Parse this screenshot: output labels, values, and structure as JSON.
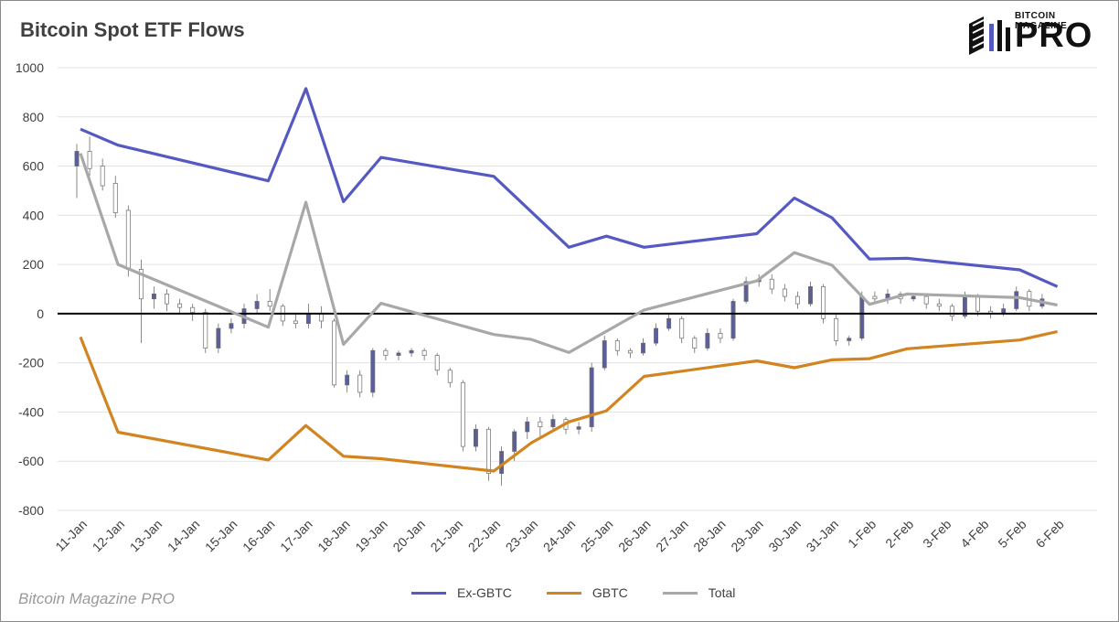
{
  "title": "Bitcoin Spot ETF Flows",
  "watermark": "Bitcoin Magazine PRO",
  "logo": {
    "small": "BITCOIN MAGAZINE",
    "big": "PRO",
    "icon": "candlestick-logo-icon"
  },
  "colors": {
    "ex_gbtc": "#5559c2",
    "gbtc": "#d1841f",
    "total": "#a8a8a8",
    "zero_line": "#000000",
    "grid": "#e3e3e3",
    "candle_up": "#5a5f9c",
    "candle_down": "#ffffff"
  },
  "chart_data": {
    "type": "line",
    "categories": [
      "11-Jan",
      "12-Jan",
      "13-Jan",
      "14-Jan",
      "15-Jan",
      "16-Jan",
      "17-Jan",
      "18-Jan",
      "19-Jan",
      "20-Jan",
      "21-Jan",
      "22-Jan",
      "23-Jan",
      "24-Jan",
      "25-Jan",
      "26-Jan",
      "27-Jan",
      "28-Jan",
      "29-Jan",
      "30-Jan",
      "31-Jan",
      "1-Feb",
      "2-Feb",
      "3-Feb",
      "4-Feb",
      "5-Feb",
      "6-Feb"
    ],
    "ylim": [
      -800,
      1000
    ],
    "yticks": [
      1000,
      800,
      600,
      400,
      200,
      0,
      -200,
      -400,
      -600,
      -800
    ],
    "grid": true,
    "legend_position": "bottom",
    "series": [
      {
        "name": "Ex-GBTC",
        "x": [
          "11-Jan",
          "12-Jan",
          "16-Jan",
          "17-Jan",
          "18-Jan",
          "19-Jan",
          "22-Jan",
          "24-Jan",
          "25-Jan",
          "26-Jan",
          "29-Jan",
          "30-Jan",
          "31-Jan",
          "1-Feb",
          "2-Feb",
          "5-Feb",
          "6-Feb"
        ],
        "values": [
          750,
          685,
          540,
          915,
          455,
          635,
          558,
          270,
          315,
          270,
          325,
          470,
          390,
          222,
          225,
          178,
          110
        ]
      },
      {
        "name": "GBTC",
        "x": [
          "11-Jan",
          "12-Jan",
          "16-Jan",
          "17-Jan",
          "18-Jan",
          "19-Jan",
          "22-Jan",
          "23-Jan",
          "24-Jan",
          "25-Jan",
          "26-Jan",
          "29-Jan",
          "30-Jan",
          "31-Jan",
          "1-Feb",
          "2-Feb",
          "5-Feb",
          "6-Feb"
        ],
        "values": [
          -95,
          -482,
          -595,
          -455,
          -580,
          -590,
          -640,
          -525,
          -440,
          -395,
          -255,
          -192,
          -220,
          -188,
          -183,
          -143,
          -107,
          -73
        ]
      },
      {
        "name": "Total",
        "x": [
          "11-Jan",
          "12-Jan",
          "16-Jan",
          "17-Jan",
          "18-Jan",
          "19-Jan",
          "22-Jan",
          "23-Jan",
          "24-Jan",
          "26-Jan",
          "29-Jan",
          "30-Jan",
          "31-Jan",
          "1-Feb",
          "2-Feb",
          "5-Feb",
          "6-Feb"
        ],
        "values": [
          652,
          200,
          -55,
          453,
          -125,
          42,
          -85,
          -105,
          -158,
          15,
          133,
          248,
          197,
          38,
          80,
          65,
          35
        ]
      }
    ],
    "price_candles": {
      "note_type": "candlestick",
      "values": [
        [
          -5,
          600,
          660,
          470,
          690
        ],
        [
          -4,
          660,
          590,
          560,
          720
        ],
        [
          -3,
          600,
          520,
          500,
          630
        ],
        [
          -2,
          530,
          410,
          390,
          560
        ],
        [
          -1,
          420,
          180,
          150,
          440
        ],
        [
          0,
          180,
          60,
          -120,
          220
        ],
        [
          1,
          60,
          80,
          20,
          110
        ],
        [
          2,
          80,
          40,
          10,
          100
        ],
        [
          3,
          40,
          25,
          0,
          60
        ],
        [
          4,
          25,
          5,
          -30,
          40
        ],
        [
          5,
          5,
          -140,
          -160,
          20
        ],
        [
          6,
          -140,
          -60,
          -160,
          -40
        ],
        [
          7,
          -60,
          -40,
          -80,
          -20
        ],
        [
          8,
          -40,
          20,
          -60,
          40
        ],
        [
          9,
          20,
          50,
          0,
          80
        ],
        [
          10,
          50,
          30,
          10,
          100
        ],
        [
          11,
          30,
          -30,
          -50,
          40
        ],
        [
          12,
          -30,
          -40,
          -60,
          0
        ],
        [
          13,
          -40,
          0,
          -60,
          40
        ],
        [
          14,
          0,
          -30,
          -60,
          30
        ],
        [
          15,
          -30,
          -290,
          -300,
          -20
        ],
        [
          16,
          -290,
          -250,
          -320,
          -230
        ],
        [
          17,
          -250,
          -320,
          -340,
          -230
        ],
        [
          18,
          -320,
          -150,
          -340,
          -140
        ],
        [
          19,
          -150,
          -170,
          -190,
          -140
        ],
        [
          20,
          -170,
          -160,
          -190,
          -150
        ],
        [
          21,
          -160,
          -150,
          -175,
          -140
        ],
        [
          22,
          -150,
          -170,
          -190,
          -140
        ],
        [
          23,
          -170,
          -230,
          -250,
          -160
        ],
        [
          24,
          -230,
          -280,
          -300,
          -220
        ],
        [
          25,
          -280,
          -540,
          -560,
          -270
        ],
        [
          26,
          -540,
          -470,
          -560,
          -450
        ],
        [
          27,
          -470,
          -650,
          -680,
          -460
        ],
        [
          28,
          -650,
          -560,
          -700,
          -540
        ],
        [
          29,
          -560,
          -480,
          -600,
          -470
        ],
        [
          30,
          -480,
          -440,
          -510,
          -420
        ],
        [
          31,
          -440,
          -460,
          -500,
          -420
        ],
        [
          32,
          -460,
          -430,
          -470,
          -410
        ],
        [
          33,
          -430,
          -470,
          -490,
          -420
        ],
        [
          34,
          -470,
          -460,
          -490,
          -440
        ],
        [
          35,
          -460,
          -220,
          -480,
          -200
        ],
        [
          36,
          -220,
          -110,
          -230,
          -90
        ],
        [
          37,
          -110,
          -150,
          -170,
          -100
        ],
        [
          38,
          -150,
          -160,
          -180,
          -140
        ],
        [
          39,
          -160,
          -120,
          -170,
          -100
        ],
        [
          40,
          -120,
          -60,
          -130,
          -40
        ],
        [
          41,
          -60,
          -20,
          -70,
          0
        ],
        [
          42,
          -20,
          -100,
          -120,
          -10
        ],
        [
          43,
          -100,
          -140,
          -160,
          -90
        ],
        [
          44,
          -140,
          -80,
          -150,
          -60
        ],
        [
          45,
          -80,
          -100,
          -120,
          -60
        ],
        [
          46,
          -100,
          50,
          -110,
          60
        ],
        [
          47,
          50,
          130,
          40,
          150
        ],
        [
          48,
          130,
          140,
          110,
          160
        ],
        [
          49,
          140,
          100,
          80,
          160
        ],
        [
          50,
          100,
          70,
          50,
          120
        ],
        [
          51,
          70,
          40,
          20,
          90
        ],
        [
          52,
          40,
          110,
          30,
          130
        ],
        [
          53,
          110,
          -20,
          -40,
          120
        ],
        [
          54,
          -20,
          -110,
          -130,
          0
        ],
        [
          55,
          -110,
          -100,
          -130,
          -90
        ],
        [
          56,
          -100,
          70,
          -110,
          90
        ],
        [
          57,
          70,
          60,
          40,
          90
        ],
        [
          58,
          60,
          80,
          40,
          100
        ],
        [
          59,
          80,
          60,
          40,
          90
        ],
        [
          60,
          60,
          70,
          50,
          80
        ],
        [
          61,
          70,
          40,
          20,
          80
        ],
        [
          62,
          40,
          30,
          10,
          60
        ],
        [
          63,
          30,
          -10,
          -30,
          40
        ],
        [
          64,
          -10,
          70,
          -20,
          90
        ],
        [
          65,
          70,
          10,
          -10,
          80
        ],
        [
          66,
          10,
          0,
          -20,
          30
        ],
        [
          67,
          0,
          20,
          -10,
          40
        ],
        [
          68,
          20,
          90,
          10,
          110
        ],
        [
          69,
          90,
          30,
          10,
          100
        ],
        [
          70,
          30,
          60,
          20,
          80
        ]
      ]
    }
  }
}
